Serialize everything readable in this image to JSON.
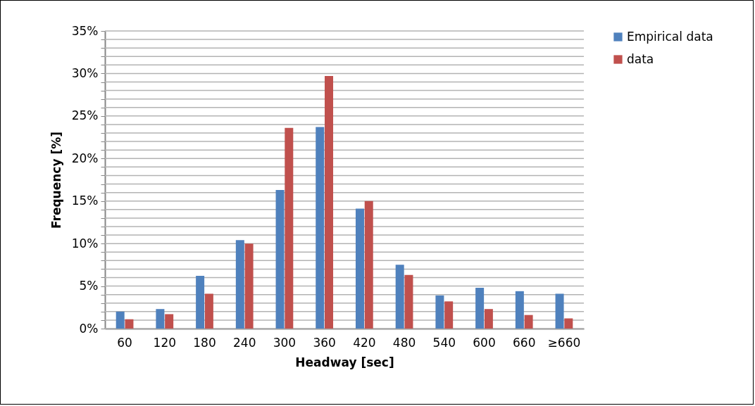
{
  "chart_data": {
    "type": "bar",
    "xlabel": "Headway [sec]",
    "ylabel": "Frequency [%]",
    "categories": [
      "60",
      "120",
      "180",
      "240",
      "300",
      "360",
      "420",
      "480",
      "540",
      "600",
      "660",
      "≥660"
    ],
    "series": [
      {
        "name": "Empirical data",
        "color": "#4f81bd",
        "values": [
          2.0,
          2.3,
          6.2,
          10.4,
          16.3,
          23.7,
          14.1,
          7.5,
          3.9,
          4.8,
          4.4,
          4.1
        ]
      },
      {
        "name": "data",
        "color": "#c0504d",
        "values": [
          1.1,
          1.7,
          4.1,
          10.0,
          23.6,
          29.7,
          15.0,
          6.3,
          3.2,
          2.3,
          1.6,
          1.2
        ]
      }
    ],
    "ylim": [
      0,
      35
    ],
    "yticks": [
      {
        "value": 0,
        "label": "0%"
      },
      {
        "value": 1,
        "label": null
      },
      {
        "value": 2,
        "label": null
      },
      {
        "value": 3,
        "label": null
      },
      {
        "value": 4,
        "label": null
      },
      {
        "value": 5,
        "label": "5%"
      },
      {
        "value": 6,
        "label": null
      },
      {
        "value": 7,
        "label": null
      },
      {
        "value": 8,
        "label": null
      },
      {
        "value": 9,
        "label": null
      },
      {
        "value": 10,
        "label": "10%"
      },
      {
        "value": 11,
        "label": null
      },
      {
        "value": 12,
        "label": null
      },
      {
        "value": 13,
        "label": null
      },
      {
        "value": 14,
        "label": null
      },
      {
        "value": 15,
        "label": "15%"
      },
      {
        "value": 16,
        "label": null
      },
      {
        "value": 17,
        "label": null
      },
      {
        "value": 18,
        "label": null
      },
      {
        "value": 19,
        "label": null
      },
      {
        "value": 20,
        "label": "20%"
      },
      {
        "value": 21,
        "label": null
      },
      {
        "value": 22,
        "label": null
      },
      {
        "value": 23,
        "label": null
      },
      {
        "value": 24,
        "label": null
      },
      {
        "value": 25,
        "label": "25%"
      },
      {
        "value": 26,
        "label": null
      },
      {
        "value": 27,
        "label": null
      },
      {
        "value": 28,
        "label": null
      },
      {
        "value": 29,
        "label": null
      },
      {
        "value": 30,
        "label": "30%"
      },
      {
        "value": 31,
        "label": null
      },
      {
        "value": 32,
        "label": null
      },
      {
        "value": 33,
        "label": null
      },
      {
        "value": 34,
        "label": null
      },
      {
        "value": 35,
        "label": "35%"
      }
    ],
    "grid": "y",
    "legend": "right"
  }
}
